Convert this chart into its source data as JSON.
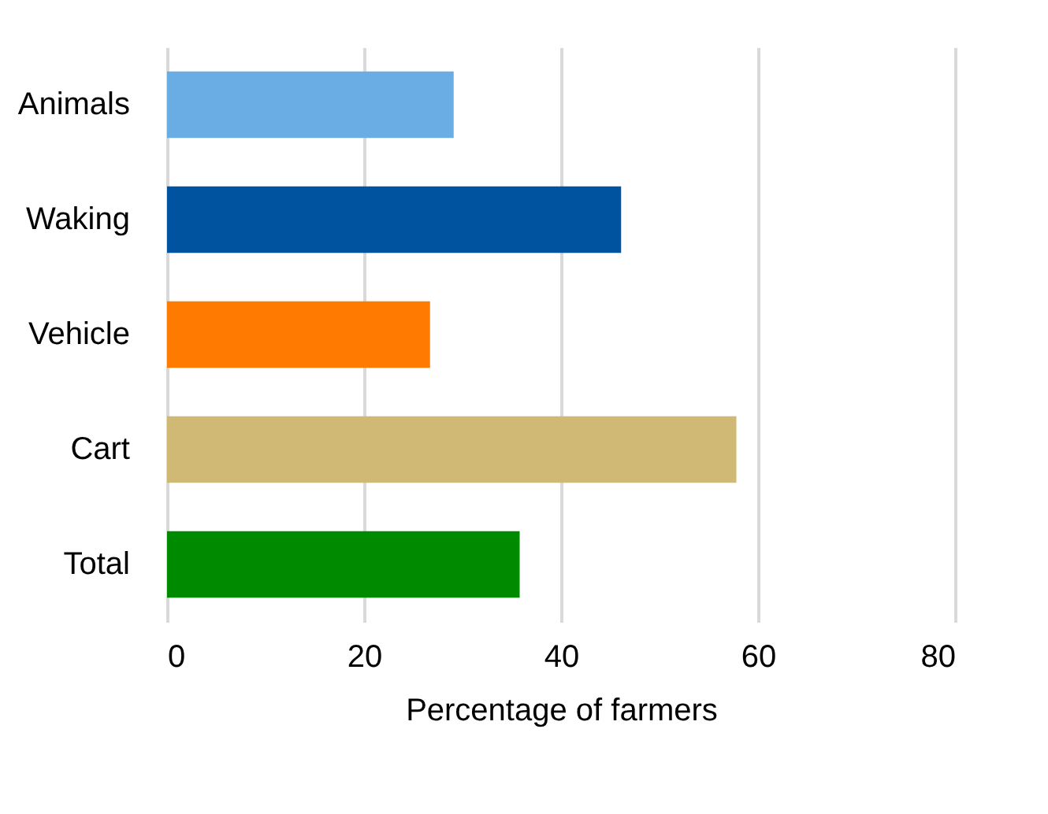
{
  "chart_data": {
    "type": "bar",
    "orientation": "horizontal",
    "xlabel": "Percentage of farmers",
    "categories": [
      "Animals",
      "Waking",
      "Vehicle",
      "Cart",
      "Total"
    ],
    "values": [
      29.1,
      46.1,
      26.7,
      57.8,
      35.8
    ],
    "colors": [
      "#6aade4",
      "#00539f",
      "#ff7a00",
      "#d0b974",
      "#008a00"
    ],
    "xlim": [
      0,
      80
    ],
    "xticks": [
      0,
      20,
      40,
      60,
      80
    ],
    "grid": "x"
  }
}
